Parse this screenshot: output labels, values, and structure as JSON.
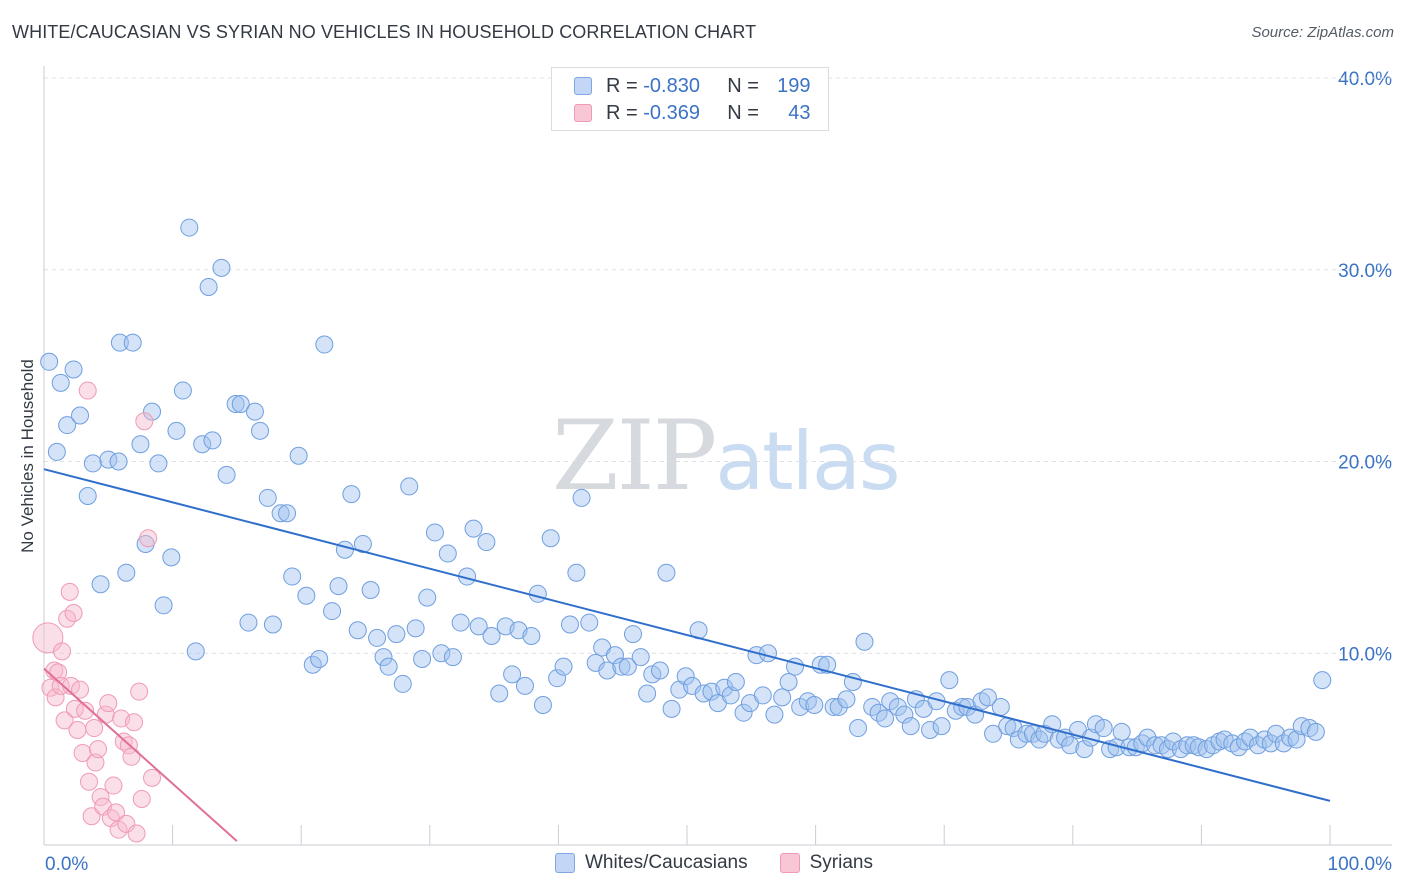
{
  "title": "WHITE/CAUCASIAN VS SYRIAN NO VEHICLES IN HOUSEHOLD CORRELATION CHART",
  "source": "Source: ZipAtlas.com",
  "watermark": {
    "zip": "ZIP",
    "atlas": "atlas"
  },
  "legend": {
    "rows": [
      {
        "r_label": "R =",
        "r_value": "-0.830",
        "n_label": "N =",
        "n_value": "199"
      },
      {
        "r_label": "R =",
        "r_value": "-0.369",
        "n_label": "N =",
        "n_value": "43"
      }
    ]
  },
  "colors": {
    "blue": "#6f9fe0",
    "blue_line": "#2f6fcb",
    "pink": "#ef9bb4",
    "pink_line": "#e0709a",
    "tick_text": "#3b73c5"
  },
  "chart_data": {
    "type": "scatter",
    "title": "WHITE/CAUCASIAN VS SYRIAN NO VEHICLES IN HOUSEHOLD CORRELATION CHART",
    "xlabel": "",
    "ylabel": "No Vehicles in Household",
    "xlim": [
      0,
      100
    ],
    "ylim": [
      0,
      40
    ],
    "x_tick_labels": [
      "0.0%",
      "100.0%"
    ],
    "y_ticks": [
      10,
      20,
      30,
      40
    ],
    "y_tick_labels": [
      "10.0%",
      "20.0%",
      "30.0%",
      "40.0%"
    ],
    "grid": true,
    "legend_position": "bottom-center",
    "series": [
      {
        "name": "Whites/Caucasians",
        "r": -0.83,
        "n": 199,
        "trend": [
          [
            0,
            19.6
          ],
          [
            100,
            2.3
          ]
        ],
        "points": [
          [
            0.4,
            25.2
          ],
          [
            1.0,
            20.5
          ],
          [
            1.3,
            24.1
          ],
          [
            1.8,
            21.9
          ],
          [
            2.3,
            24.8
          ],
          [
            2.8,
            22.4
          ],
          [
            3.4,
            18.2
          ],
          [
            3.8,
            19.9
          ],
          [
            4.4,
            13.6
          ],
          [
            5.0,
            20.1
          ],
          [
            5.8,
            20.0
          ],
          [
            5.9,
            26.2
          ],
          [
            6.4,
            14.2
          ],
          [
            6.9,
            26.2
          ],
          [
            7.5,
            20.9
          ],
          [
            7.9,
            15.7
          ],
          [
            8.4,
            22.6
          ],
          [
            8.9,
            19.9
          ],
          [
            9.3,
            12.5
          ],
          [
            9.9,
            15.0
          ],
          [
            10.3,
            21.6
          ],
          [
            10.8,
            23.7
          ],
          [
            11.3,
            32.2
          ],
          [
            11.8,
            10.1
          ],
          [
            12.3,
            20.9
          ],
          [
            12.8,
            29.1
          ],
          [
            13.1,
            21.1
          ],
          [
            13.8,
            30.1
          ],
          [
            14.2,
            19.3
          ],
          [
            14.9,
            23.0
          ],
          [
            15.3,
            23.0
          ],
          [
            15.9,
            11.6
          ],
          [
            16.4,
            22.6
          ],
          [
            16.8,
            21.6
          ],
          [
            17.4,
            18.1
          ],
          [
            17.8,
            11.5
          ],
          [
            18.4,
            17.3
          ],
          [
            18.9,
            17.3
          ],
          [
            19.3,
            14.0
          ],
          [
            19.8,
            20.3
          ],
          [
            20.4,
            13.0
          ],
          [
            20.9,
            9.4
          ],
          [
            21.4,
            9.7
          ],
          [
            21.8,
            26.1
          ],
          [
            22.4,
            12.2
          ],
          [
            22.9,
            13.5
          ],
          [
            23.4,
            15.4
          ],
          [
            23.9,
            18.3
          ],
          [
            24.4,
            11.2
          ],
          [
            24.8,
            15.7
          ],
          [
            25.4,
            13.3
          ],
          [
            25.9,
            10.8
          ],
          [
            26.4,
            9.8
          ],
          [
            26.8,
            9.3
          ],
          [
            27.4,
            11.0
          ],
          [
            27.9,
            8.4
          ],
          [
            28.4,
            18.7
          ],
          [
            28.9,
            11.3
          ],
          [
            29.4,
            9.7
          ],
          [
            29.8,
            12.9
          ],
          [
            30.4,
            16.3
          ],
          [
            30.9,
            10.0
          ],
          [
            31.4,
            15.2
          ],
          [
            31.8,
            9.8
          ],
          [
            32.4,
            11.6
          ],
          [
            32.9,
            14.0
          ],
          [
            33.4,
            16.5
          ],
          [
            33.8,
            11.4
          ],
          [
            34.4,
            15.8
          ],
          [
            34.8,
            10.9
          ],
          [
            35.4,
            7.9
          ],
          [
            35.9,
            11.4
          ],
          [
            36.4,
            8.9
          ],
          [
            36.9,
            11.2
          ],
          [
            37.4,
            8.3
          ],
          [
            37.9,
            10.9
          ],
          [
            38.4,
            13.1
          ],
          [
            38.8,
            7.3
          ],
          [
            39.4,
            16.0
          ],
          [
            39.9,
            8.7
          ],
          [
            40.4,
            9.3
          ],
          [
            40.9,
            11.5
          ],
          [
            41.4,
            14.2
          ],
          [
            41.8,
            18.1
          ],
          [
            42.4,
            11.6
          ],
          [
            42.9,
            9.5
          ],
          [
            43.4,
            10.3
          ],
          [
            43.8,
            9.1
          ],
          [
            44.4,
            9.9
          ],
          [
            44.9,
            9.3
          ],
          [
            45.4,
            9.3
          ],
          [
            45.8,
            11.0
          ],
          [
            46.4,
            9.8
          ],
          [
            46.9,
            7.9
          ],
          [
            47.3,
            8.9
          ],
          [
            47.9,
            9.1
          ],
          [
            48.4,
            14.2
          ],
          [
            48.8,
            7.1
          ],
          [
            49.4,
            8.1
          ],
          [
            49.9,
            8.8
          ],
          [
            50.4,
            8.3
          ],
          [
            50.9,
            11.2
          ],
          [
            51.3,
            7.9
          ],
          [
            51.9,
            8.0
          ],
          [
            52.4,
            7.4
          ],
          [
            52.9,
            8.2
          ],
          [
            53.4,
            7.8
          ],
          [
            53.8,
            8.5
          ],
          [
            54.4,
            6.9
          ],
          [
            54.9,
            7.4
          ],
          [
            55.4,
            9.9
          ],
          [
            55.9,
            7.8
          ],
          [
            56.3,
            10.0
          ],
          [
            56.8,
            6.8
          ],
          [
            57.4,
            7.7
          ],
          [
            57.9,
            8.5
          ],
          [
            58.4,
            9.3
          ],
          [
            58.8,
            7.2
          ],
          [
            59.4,
            7.5
          ],
          [
            59.9,
            7.3
          ],
          [
            60.4,
            9.4
          ],
          [
            60.9,
            9.4
          ],
          [
            61.4,
            7.2
          ],
          [
            61.8,
            7.2
          ],
          [
            62.4,
            7.6
          ],
          [
            62.9,
            8.5
          ],
          [
            63.3,
            6.1
          ],
          [
            63.8,
            10.6
          ],
          [
            64.4,
            7.2
          ],
          [
            64.9,
            6.9
          ],
          [
            65.4,
            6.6
          ],
          [
            65.8,
            7.5
          ],
          [
            66.4,
            7.2
          ],
          [
            66.9,
            6.8
          ],
          [
            67.4,
            6.2
          ],
          [
            67.8,
            7.6
          ],
          [
            68.4,
            7.1
          ],
          [
            68.9,
            6.0
          ],
          [
            69.4,
            7.5
          ],
          [
            69.8,
            6.2
          ],
          [
            70.4,
            8.6
          ],
          [
            70.9,
            7.0
          ],
          [
            71.4,
            7.2
          ],
          [
            71.8,
            7.2
          ],
          [
            72.4,
            6.8
          ],
          [
            72.9,
            7.5
          ],
          [
            73.4,
            7.7
          ],
          [
            73.8,
            5.8
          ],
          [
            74.4,
            7.2
          ],
          [
            74.9,
            6.2
          ],
          [
            75.4,
            6.1
          ],
          [
            75.8,
            5.5
          ],
          [
            76.4,
            5.8
          ],
          [
            76.9,
            5.8
          ],
          [
            77.4,
            5.5
          ],
          [
            77.8,
            5.8
          ],
          [
            78.4,
            6.3
          ],
          [
            78.9,
            5.5
          ],
          [
            79.4,
            5.6
          ],
          [
            79.8,
            5.2
          ],
          [
            80.4,
            6.0
          ],
          [
            80.9,
            5.0
          ],
          [
            81.4,
            5.6
          ],
          [
            81.8,
            6.3
          ],
          [
            82.4,
            6.1
          ],
          [
            82.9,
            5.0
          ],
          [
            83.4,
            5.1
          ],
          [
            83.8,
            5.9
          ],
          [
            84.4,
            5.1
          ],
          [
            84.9,
            5.1
          ],
          [
            85.4,
            5.3
          ],
          [
            85.8,
            5.6
          ],
          [
            86.4,
            5.2
          ],
          [
            86.9,
            5.2
          ],
          [
            87.4,
            5.0
          ],
          [
            87.8,
            5.4
          ],
          [
            88.4,
            5.0
          ],
          [
            88.9,
            5.2
          ],
          [
            89.4,
            5.2
          ],
          [
            89.8,
            5.1
          ],
          [
            90.4,
            5.0
          ],
          [
            90.9,
            5.2
          ],
          [
            91.4,
            5.4
          ],
          [
            91.8,
            5.5
          ],
          [
            92.4,
            5.3
          ],
          [
            92.9,
            5.1
          ],
          [
            93.4,
            5.4
          ],
          [
            93.8,
            5.6
          ],
          [
            94.4,
            5.2
          ],
          [
            94.9,
            5.5
          ],
          [
            95.4,
            5.3
          ],
          [
            95.8,
            5.8
          ],
          [
            96.4,
            5.3
          ],
          [
            96.9,
            5.6
          ],
          [
            97.4,
            5.5
          ],
          [
            97.8,
            6.2
          ],
          [
            98.4,
            6.1
          ],
          [
            98.9,
            5.9
          ],
          [
            99.4,
            8.6
          ]
        ]
      },
      {
        "name": "Syrians",
        "r": -0.369,
        "n": 43,
        "trend": [
          [
            0,
            9.2
          ],
          [
            15,
            0.2
          ]
        ],
        "points": [
          [
            0.3,
            10.8
          ],
          [
            0.5,
            8.2
          ],
          [
            0.8,
            9.1
          ],
          [
            0.9,
            7.7
          ],
          [
            1.1,
            9.0
          ],
          [
            1.3,
            8.3
          ],
          [
            1.4,
            10.1
          ],
          [
            1.6,
            6.5
          ],
          [
            1.8,
            11.8
          ],
          [
            2.0,
            13.2
          ],
          [
            2.1,
            8.3
          ],
          [
            2.3,
            12.1
          ],
          [
            2.4,
            7.1
          ],
          [
            2.6,
            6.0
          ],
          [
            2.8,
            8.1
          ],
          [
            3.0,
            4.8
          ],
          [
            3.2,
            7.0
          ],
          [
            3.4,
            23.7
          ],
          [
            3.5,
            3.3
          ],
          [
            3.7,
            1.5
          ],
          [
            3.9,
            6.1
          ],
          [
            4.0,
            4.3
          ],
          [
            4.2,
            5.0
          ],
          [
            4.4,
            2.5
          ],
          [
            4.6,
            2.0
          ],
          [
            4.8,
            6.8
          ],
          [
            5.0,
            7.4
          ],
          [
            5.2,
            1.4
          ],
          [
            5.4,
            3.1
          ],
          [
            5.6,
            1.7
          ],
          [
            5.8,
            0.8
          ],
          [
            6.0,
            6.6
          ],
          [
            6.2,
            5.4
          ],
          [
            6.4,
            1.1
          ],
          [
            6.6,
            5.2
          ],
          [
            6.8,
            4.6
          ],
          [
            7.0,
            6.4
          ],
          [
            7.2,
            0.6
          ],
          [
            7.4,
            8.0
          ],
          [
            7.6,
            2.4
          ],
          [
            7.8,
            22.1
          ],
          [
            8.1,
            16.0
          ],
          [
            8.4,
            3.5
          ]
        ]
      }
    ]
  }
}
